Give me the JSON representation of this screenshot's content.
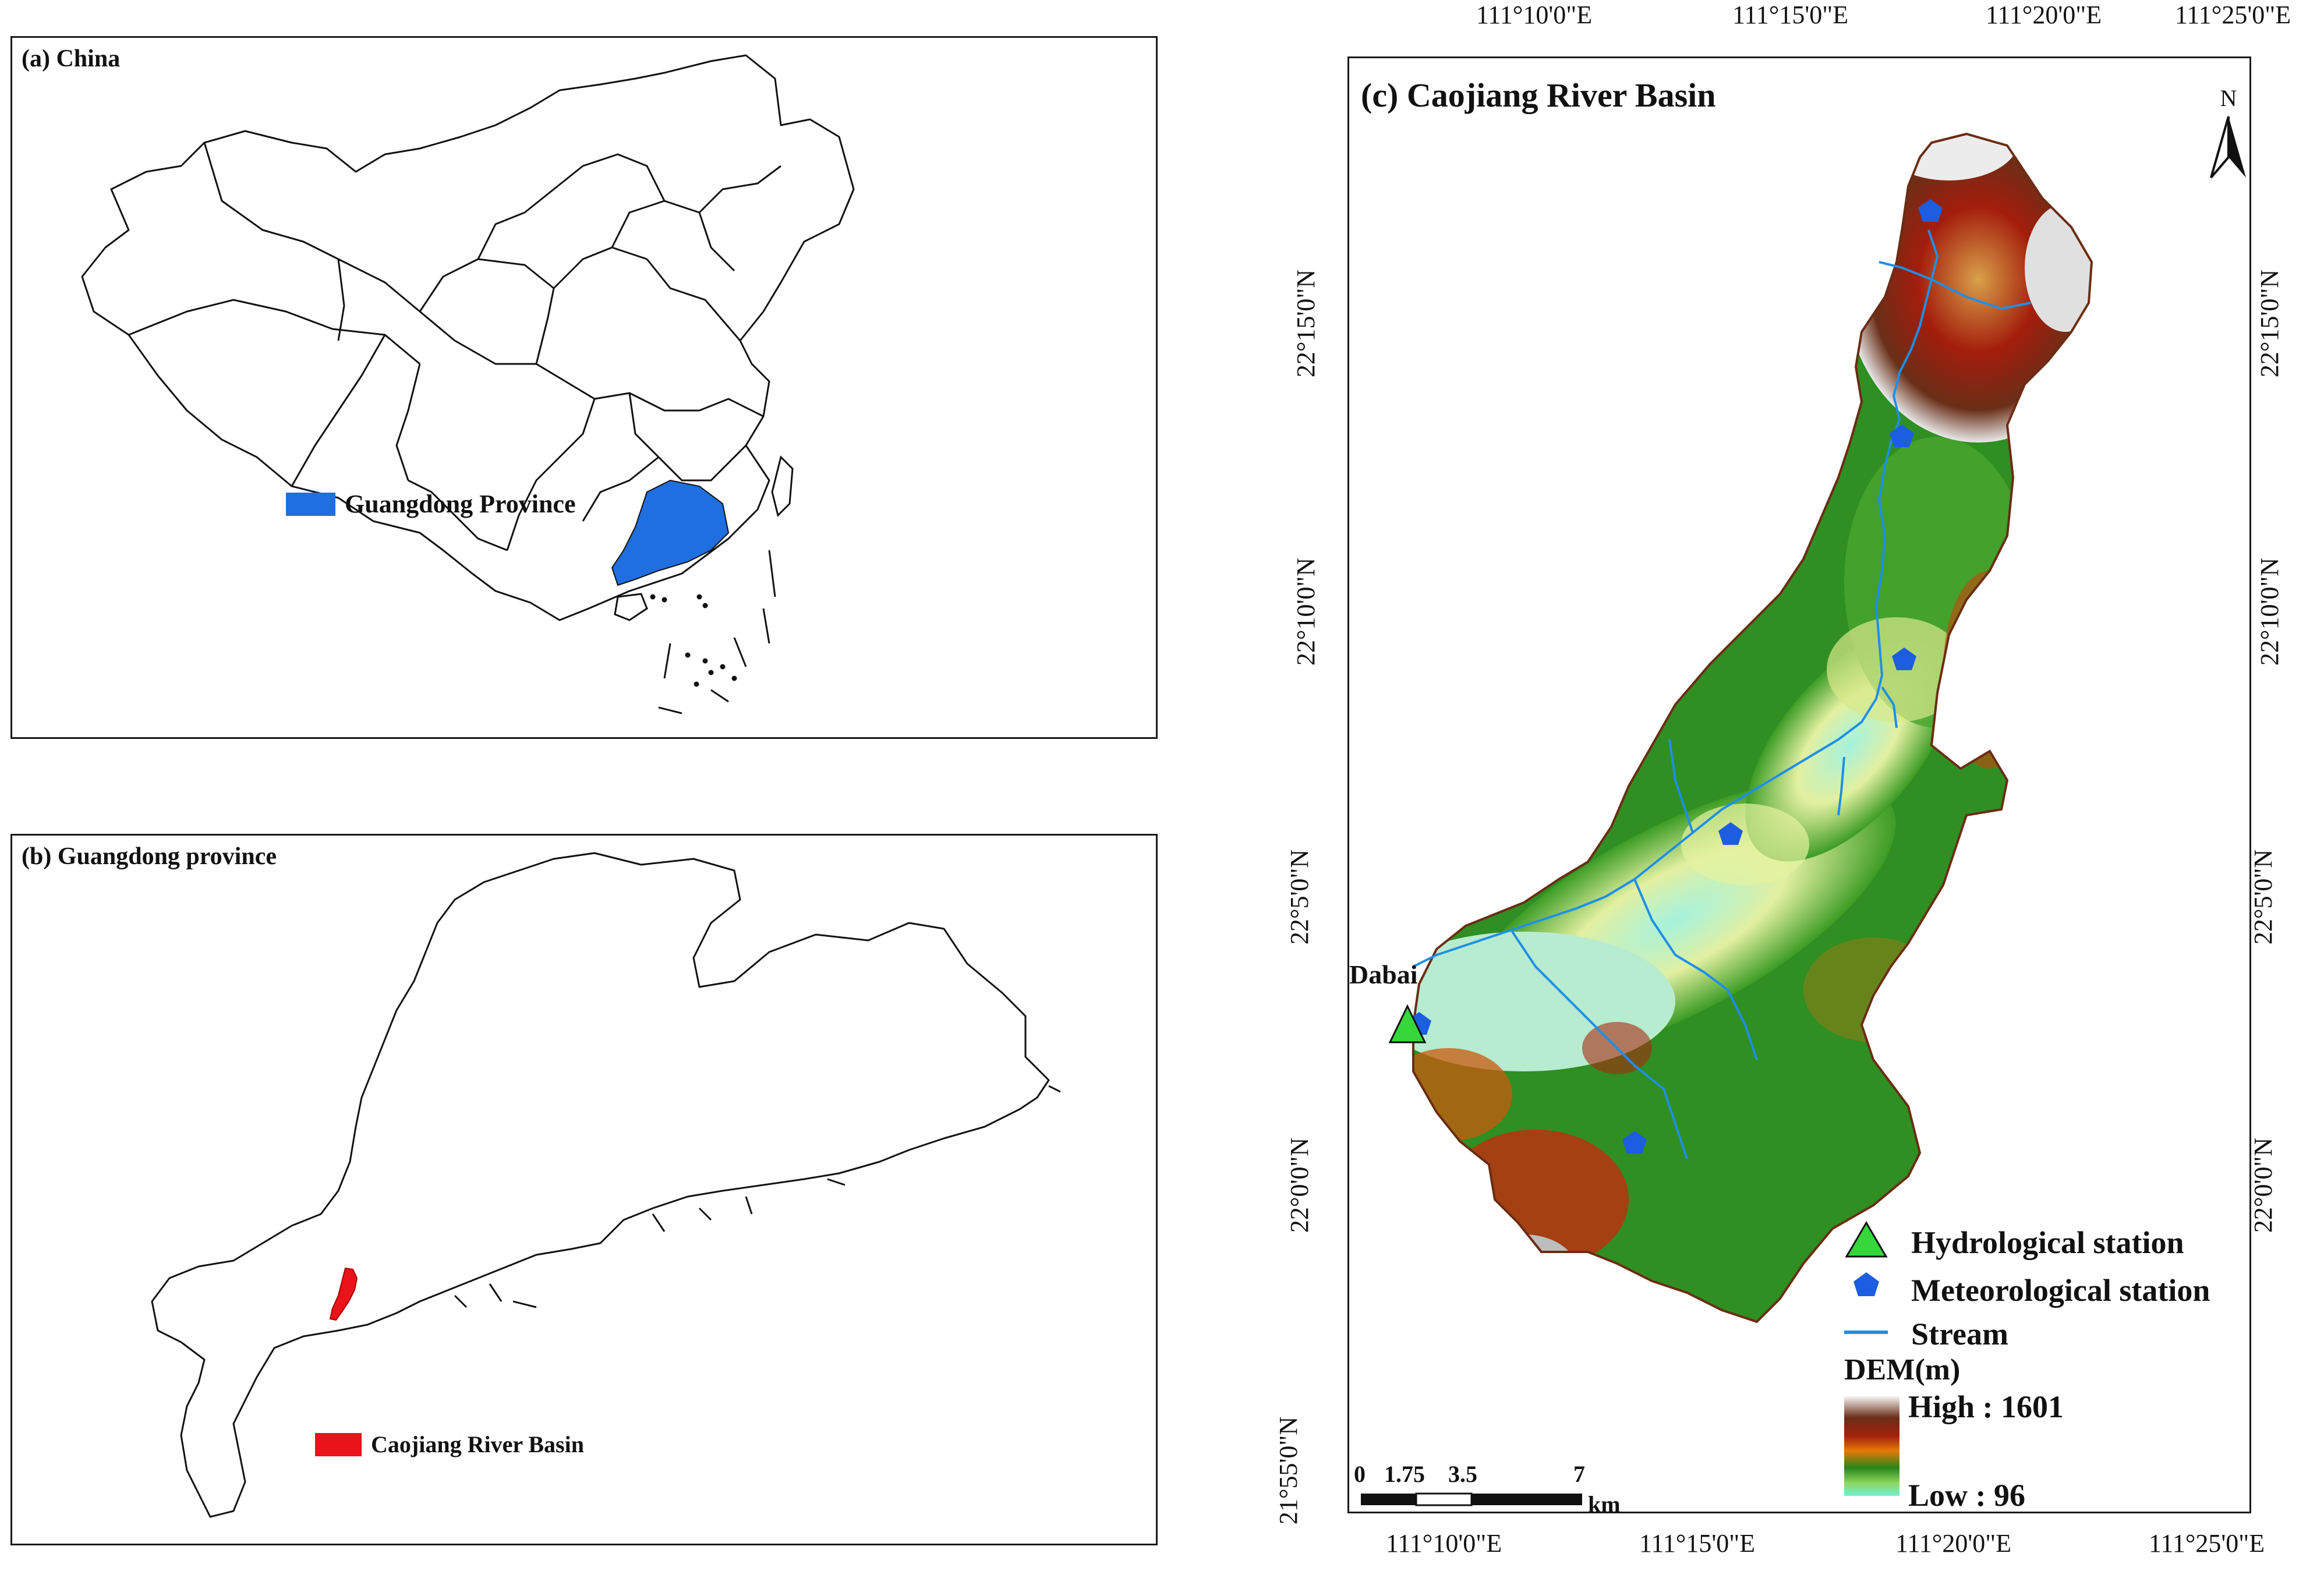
{
  "panel_a": {
    "title": "(a) China",
    "legend": {
      "label": "Guangdong Province",
      "color": "#1f6fe0"
    }
  },
  "panel_b": {
    "title": "(b) Guangdong province",
    "legend": {
      "label": "Caojiang River Basin",
      "color": "#e8141a"
    }
  },
  "panel_c": {
    "title": "(c) Caojiang River Basin",
    "north_label": "N",
    "top_longitude_labels": [
      "111°10'0\"E",
      "111°15'0\"E",
      "111°20'0\"E",
      "111°25'0\"E"
    ],
    "bottom_longitude_labels": [
      "111°10'0\"E",
      "111°15'0\"E",
      "111°20'0\"E",
      "111°25'0\"E"
    ],
    "left_latitude_labels": [
      "22°15'0\"N",
      "22°10'0\"N",
      "22°5'0\"N",
      "22°0'0\"N",
      "21°55'0\"N"
    ],
    "right_latitude_labels": [
      "22°15'0\"N",
      "22°10'0\"N",
      "22°5'0\"N",
      "22°0'0\"N"
    ],
    "station_label": "Dabai",
    "legend": {
      "hydrological": "Hydrological station",
      "meteorological": "Meteorological station",
      "stream": "Stream",
      "dem_title": "DEM(m)",
      "dem_high": "High : 1601",
      "dem_low": "Low : 96"
    },
    "scale_bar": {
      "ticks": [
        "0",
        "1.75",
        "3.5",
        "7"
      ],
      "unit": "km"
    },
    "colors": {
      "hydrological_station": "#35d73a",
      "meteorological_station": "#1d5de0",
      "stream": "#1e8fe8"
    }
  }
}
